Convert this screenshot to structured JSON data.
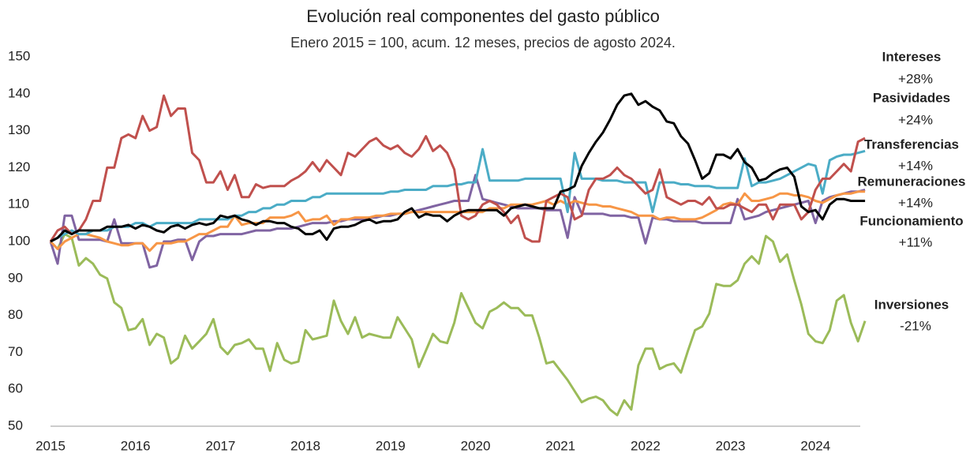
{
  "chart_data": {
    "type": "line",
    "title": "Evolución real componentes del gasto público",
    "subtitle": "Enero 2015 = 100, acum. 12 meses, precios de agosto 2024.",
    "categories": [
      "2015",
      null,
      null,
      null,
      null,
      null,
      null,
      null,
      null,
      null,
      null,
      null,
      "2016",
      null,
      null,
      null,
      null,
      null,
      null,
      null,
      null,
      null,
      null,
      null,
      "2017",
      null,
      null,
      null,
      null,
      null,
      null,
      null,
      null,
      null,
      null,
      null,
      "2018",
      null,
      null,
      null,
      null,
      null,
      null,
      null,
      null,
      null,
      null,
      null,
      "2019",
      null,
      null,
      null,
      null,
      null,
      null,
      null,
      null,
      null,
      null,
      null,
      "2020",
      null,
      null,
      null,
      null,
      null,
      null,
      null,
      null,
      null,
      null,
      null,
      "2021",
      null,
      null,
      null,
      null,
      null,
      null,
      null,
      null,
      null,
      null,
      null,
      "2022",
      null,
      null,
      null,
      null,
      null,
      null,
      null,
      null,
      null,
      null,
      null,
      "2023",
      null,
      null,
      null,
      null,
      null,
      null,
      null,
      null,
      null,
      null,
      null,
      "2024",
      null,
      null,
      null,
      null,
      null,
      null,
      null
    ],
    "ylim": [
      50,
      150
    ],
    "yticks": [
      50,
      60,
      70,
      80,
      90,
      100,
      110,
      120,
      130,
      140,
      150
    ],
    "grid": false,
    "series": [
      {
        "name": "Inversiones",
        "change": "-21%",
        "color": "#9bbb59",
        "values": [
          100,
          98,
          102,
          101,
          93.5,
          95.5,
          94,
          91,
          90,
          83.5,
          82,
          76,
          76.5,
          79,
          72,
          75,
          74,
          67,
          68.5,
          74.5,
          71,
          73,
          75,
          79,
          71.5,
          69.5,
          72,
          72.5,
          73.5,
          71,
          71,
          65,
          72.5,
          68,
          67,
          67.5,
          76,
          73.5,
          74,
          74.5,
          84,
          78.5,
          75,
          79.5,
          74,
          75,
          74.5,
          74,
          74,
          79.5,
          76.5,
          73.5,
          66,
          70.5,
          75,
          73,
          72.5,
          78,
          86,
          82,
          78,
          76.5,
          81,
          82,
          83.5,
          82,
          82,
          80,
          80,
          74,
          67,
          67.5,
          65,
          62.5,
          59.5,
          56.5,
          57.5,
          58,
          57,
          54.5,
          53,
          57,
          54.5,
          66.5,
          71,
          71,
          65.5,
          66.5,
          67,
          64.5,
          70.5,
          76,
          77,
          80.5,
          88.5,
          88,
          88,
          89.5,
          94,
          96,
          94,
          101.5,
          100,
          94.5,
          96.5,
          89.5,
          83,
          75,
          73,
          72.5,
          76,
          84,
          85.5,
          78,
          73,
          78.5
        ]
      },
      {
        "name": "Remuneraciones",
        "change": "+14%",
        "color": "#8064a2",
        "values": [
          100,
          94,
          107,
          107,
          100.5,
          100.5,
          100.5,
          100.5,
          100,
          106,
          99.5,
          99.5,
          99.5,
          99.5,
          93,
          93.5,
          100,
          100,
          100.5,
          100.5,
          95,
          100,
          101.5,
          101.5,
          102,
          102,
          102,
          102,
          102.5,
          103,
          103,
          103,
          103.5,
          103.5,
          103.5,
          104,
          104.5,
          105,
          105,
          105,
          105.5,
          105.5,
          106,
          106,
          106,
          106.5,
          106.5,
          107,
          107,
          107.5,
          107.5,
          108,
          108.5,
          109,
          109.5,
          110,
          110.5,
          111,
          111,
          111,
          118,
          111.5,
          111,
          110.5,
          110,
          109.5,
          109,
          109,
          109,
          109,
          108.5,
          108.5,
          108.5,
          101,
          112,
          107.5,
          107.5,
          107.5,
          107.5,
          107,
          107,
          107,
          106.5,
          106.5,
          99.5,
          106.5,
          106,
          106,
          105.5,
          105.5,
          105.5,
          105.5,
          105,
          105,
          105,
          105,
          105,
          111.5,
          106,
          106.5,
          107,
          108,
          108.5,
          109,
          109.5,
          110,
          110.5,
          111,
          105,
          111,
          112,
          112.5,
          113,
          113.5,
          113.5,
          114
        ]
      },
      {
        "name": "Transferencias",
        "change": "+14%",
        "color": "#f79646",
        "values": [
          100,
          98,
          100,
          101,
          102,
          102,
          101.5,
          101,
          100,
          99.5,
          99,
          99,
          99.5,
          99.5,
          97.5,
          99.5,
          99.5,
          99.5,
          100,
          100,
          101,
          102,
          102,
          103,
          104,
          104,
          107,
          104.5,
          105,
          105,
          105,
          106.5,
          106.5,
          106.5,
          107,
          108,
          105.5,
          106,
          106,
          107,
          104.5,
          106,
          106,
          106.5,
          106.5,
          106.5,
          107,
          107,
          107.5,
          107.5,
          107.5,
          108,
          108,
          108,
          108,
          108,
          108,
          108,
          108,
          108,
          108,
          108,
          109,
          109,
          109,
          110,
          110,
          110,
          110,
          110.5,
          111,
          110,
          111,
          110,
          111,
          110.5,
          110,
          110,
          109.5,
          109.5,
          109,
          108.5,
          108,
          107,
          107,
          107,
          106,
          106.5,
          106.5,
          106,
          106,
          106,
          106.5,
          107.5,
          108.5,
          110,
          110.5,
          110,
          113,
          111,
          111,
          111.5,
          112,
          113,
          113,
          112.5,
          112.5,
          112,
          111,
          110.5,
          111.5,
          112.5,
          113,
          113,
          113.5,
          113.5
        ]
      },
      {
        "name": "Pasividades",
        "change": "+24%",
        "color": "#4bacc6",
        "values": [
          100,
          101,
          102,
          103,
          102,
          102,
          103,
          103,
          103,
          104,
          104,
          104,
          105,
          105,
          104,
          105,
          105,
          105,
          105,
          105,
          105,
          106,
          106,
          106,
          106,
          106,
          107,
          107,
          108,
          108,
          109,
          109,
          110,
          110,
          111,
          111,
          111,
          112,
          112,
          113,
          113,
          113,
          113,
          113,
          113,
          113,
          113,
          113,
          113.5,
          113.5,
          114,
          114,
          114,
          114,
          115,
          115,
          115,
          115.5,
          115.5,
          116,
          116,
          125,
          116.5,
          116.5,
          116.5,
          116.5,
          116.5,
          117,
          117,
          117,
          117,
          117,
          117,
          108,
          124,
          117,
          117,
          117,
          116.5,
          116.5,
          116.5,
          116,
          116,
          116,
          116,
          108,
          116,
          116,
          116,
          115.5,
          115.5,
          115,
          115,
          115,
          114.5,
          114.5,
          114.5,
          114.5,
          122.5,
          115,
          116,
          116,
          116.5,
          117,
          118,
          119,
          120,
          121,
          120.5,
          113,
          122,
          123,
          123.5,
          123.5,
          124,
          124.5
        ]
      },
      {
        "name": "Intereses",
        "change": "+28%",
        "color": "#c0504d",
        "values": [
          100,
          103,
          104,
          102,
          103,
          106,
          111,
          111,
          120,
          120,
          128,
          129,
          128,
          134,
          130,
          131,
          139.5,
          134,
          136,
          136,
          124,
          122,
          116,
          116,
          119,
          114,
          118,
          112,
          112,
          115.5,
          114.5,
          115,
          115,
          115,
          116.5,
          117.5,
          119,
          121.5,
          119,
          122,
          120,
          118,
          124,
          123,
          125,
          127,
          128,
          126,
          125,
          126,
          124,
          123,
          125,
          128.5,
          124.5,
          126,
          124,
          119.5,
          107,
          106,
          107,
          110,
          111,
          110,
          108,
          105,
          107,
          101,
          100,
          100,
          111,
          112,
          113,
          112,
          106,
          107,
          114,
          117,
          117,
          118,
          120,
          118,
          117,
          115,
          113,
          114,
          119.5,
          112,
          111,
          110,
          111,
          111,
          110,
          112,
          109,
          109,
          110,
          110,
          109,
          108,
          110,
          110,
          106,
          110,
          110,
          110,
          106,
          108,
          114,
          117,
          117,
          119,
          121,
          119,
          127,
          128
        ]
      },
      {
        "name": "Funcionamiento",
        "change": "+11%",
        "color": "#000000",
        "values": [
          100,
          101,
          103,
          102,
          103,
          103,
          103,
          103,
          104,
          104,
          104,
          104.5,
          103.5,
          104.5,
          104,
          103,
          102.5,
          104,
          104.5,
          103.5,
          104.5,
          105,
          104.5,
          105,
          107,
          106.5,
          107,
          106,
          105.5,
          104.5,
          105.5,
          105.5,
          105,
          105,
          104,
          103.5,
          102,
          102,
          103,
          100.5,
          103.5,
          104,
          104,
          104.5,
          105.5,
          106,
          105,
          105.5,
          105.5,
          106,
          108,
          109,
          106.5,
          107.5,
          107,
          107,
          105.5,
          107,
          108,
          108.5,
          108.5,
          108.5,
          108.5,
          108.5,
          107,
          109,
          109.5,
          110,
          109.5,
          109,
          109,
          109,
          113.5,
          114,
          115,
          120.5,
          124,
          127,
          129.5,
          133,
          137,
          139.5,
          140,
          137,
          138,
          136.5,
          135.5,
          132.5,
          132,
          128.5,
          126.5,
          122,
          117,
          118.5,
          123.5,
          123.5,
          122.5,
          125,
          121.5,
          120,
          116.5,
          117,
          118.5,
          119.5,
          120,
          117.5,
          109.5,
          108,
          108.5,
          106,
          110,
          111.5,
          111.5,
          111,
          111,
          111
        ]
      }
    ]
  }
}
